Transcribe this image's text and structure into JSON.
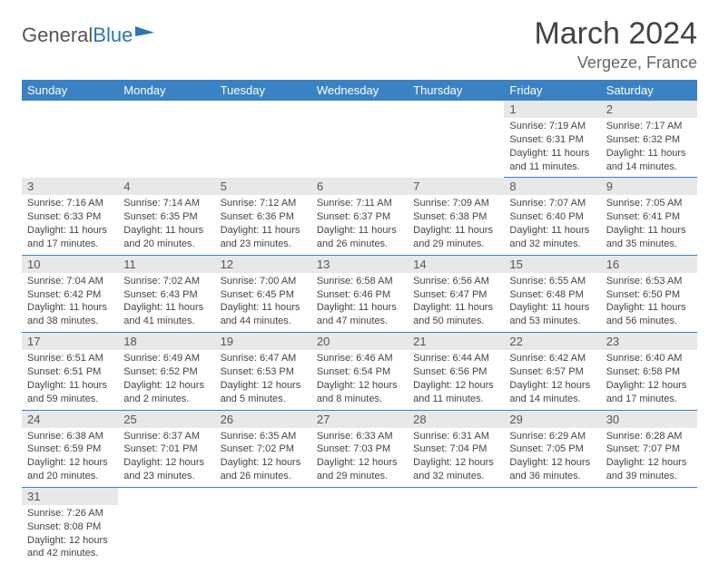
{
  "logo": {
    "text1": "General",
    "text2": "Blue"
  },
  "title": "March 2024",
  "location": "Vergeze, France",
  "colors": {
    "header_bg": "#3a82c4",
    "header_text": "#ffffff",
    "daynum_bg": "#e8e8e8",
    "text": "#444444",
    "rule": "#3a82c4",
    "logo_blue": "#2e74b5"
  },
  "weekdays": [
    "Sunday",
    "Monday",
    "Tuesday",
    "Wednesday",
    "Thursday",
    "Friday",
    "Saturday"
  ],
  "weeks": [
    [
      null,
      null,
      null,
      null,
      null,
      {
        "n": "1",
        "sunrise": "7:19 AM",
        "sunset": "6:31 PM",
        "daylight": "11 hours and 11 minutes."
      },
      {
        "n": "2",
        "sunrise": "7:17 AM",
        "sunset": "6:32 PM",
        "daylight": "11 hours and 14 minutes."
      }
    ],
    [
      {
        "n": "3",
        "sunrise": "7:16 AM",
        "sunset": "6:33 PM",
        "daylight": "11 hours and 17 minutes."
      },
      {
        "n": "4",
        "sunrise": "7:14 AM",
        "sunset": "6:35 PM",
        "daylight": "11 hours and 20 minutes."
      },
      {
        "n": "5",
        "sunrise": "7:12 AM",
        "sunset": "6:36 PM",
        "daylight": "11 hours and 23 minutes."
      },
      {
        "n": "6",
        "sunrise": "7:11 AM",
        "sunset": "6:37 PM",
        "daylight": "11 hours and 26 minutes."
      },
      {
        "n": "7",
        "sunrise": "7:09 AM",
        "sunset": "6:38 PM",
        "daylight": "11 hours and 29 minutes."
      },
      {
        "n": "8",
        "sunrise": "7:07 AM",
        "sunset": "6:40 PM",
        "daylight": "11 hours and 32 minutes."
      },
      {
        "n": "9",
        "sunrise": "7:05 AM",
        "sunset": "6:41 PM",
        "daylight": "11 hours and 35 minutes."
      }
    ],
    [
      {
        "n": "10",
        "sunrise": "7:04 AM",
        "sunset": "6:42 PM",
        "daylight": "11 hours and 38 minutes."
      },
      {
        "n": "11",
        "sunrise": "7:02 AM",
        "sunset": "6:43 PM",
        "daylight": "11 hours and 41 minutes."
      },
      {
        "n": "12",
        "sunrise": "7:00 AM",
        "sunset": "6:45 PM",
        "daylight": "11 hours and 44 minutes."
      },
      {
        "n": "13",
        "sunrise": "6:58 AM",
        "sunset": "6:46 PM",
        "daylight": "11 hours and 47 minutes."
      },
      {
        "n": "14",
        "sunrise": "6:56 AM",
        "sunset": "6:47 PM",
        "daylight": "11 hours and 50 minutes."
      },
      {
        "n": "15",
        "sunrise": "6:55 AM",
        "sunset": "6:48 PM",
        "daylight": "11 hours and 53 minutes."
      },
      {
        "n": "16",
        "sunrise": "6:53 AM",
        "sunset": "6:50 PM",
        "daylight": "11 hours and 56 minutes."
      }
    ],
    [
      {
        "n": "17",
        "sunrise": "6:51 AM",
        "sunset": "6:51 PM",
        "daylight": "11 hours and 59 minutes."
      },
      {
        "n": "18",
        "sunrise": "6:49 AM",
        "sunset": "6:52 PM",
        "daylight": "12 hours and 2 minutes."
      },
      {
        "n": "19",
        "sunrise": "6:47 AM",
        "sunset": "6:53 PM",
        "daylight": "12 hours and 5 minutes."
      },
      {
        "n": "20",
        "sunrise": "6:46 AM",
        "sunset": "6:54 PM",
        "daylight": "12 hours and 8 minutes."
      },
      {
        "n": "21",
        "sunrise": "6:44 AM",
        "sunset": "6:56 PM",
        "daylight": "12 hours and 11 minutes."
      },
      {
        "n": "22",
        "sunrise": "6:42 AM",
        "sunset": "6:57 PM",
        "daylight": "12 hours and 14 minutes."
      },
      {
        "n": "23",
        "sunrise": "6:40 AM",
        "sunset": "6:58 PM",
        "daylight": "12 hours and 17 minutes."
      }
    ],
    [
      {
        "n": "24",
        "sunrise": "6:38 AM",
        "sunset": "6:59 PM",
        "daylight": "12 hours and 20 minutes."
      },
      {
        "n": "25",
        "sunrise": "6:37 AM",
        "sunset": "7:01 PM",
        "daylight": "12 hours and 23 minutes."
      },
      {
        "n": "26",
        "sunrise": "6:35 AM",
        "sunset": "7:02 PM",
        "daylight": "12 hours and 26 minutes."
      },
      {
        "n": "27",
        "sunrise": "6:33 AM",
        "sunset": "7:03 PM",
        "daylight": "12 hours and 29 minutes."
      },
      {
        "n": "28",
        "sunrise": "6:31 AM",
        "sunset": "7:04 PM",
        "daylight": "12 hours and 32 minutes."
      },
      {
        "n": "29",
        "sunrise": "6:29 AM",
        "sunset": "7:05 PM",
        "daylight": "12 hours and 36 minutes."
      },
      {
        "n": "30",
        "sunrise": "6:28 AM",
        "sunset": "7:07 PM",
        "daylight": "12 hours and 39 minutes."
      }
    ],
    [
      {
        "n": "31",
        "sunrise": "7:26 AM",
        "sunset": "8:08 PM",
        "daylight": "12 hours and 42 minutes."
      },
      null,
      null,
      null,
      null,
      null,
      null
    ]
  ],
  "labels": {
    "sunrise": "Sunrise: ",
    "sunset": "Sunset: ",
    "daylight": "Daylight: "
  }
}
